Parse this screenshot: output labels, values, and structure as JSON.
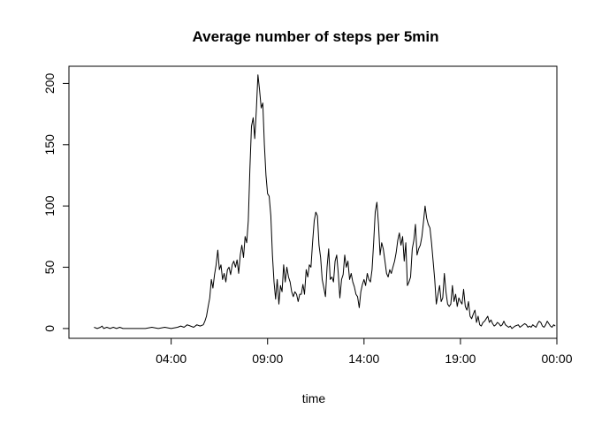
{
  "chart_data": {
    "type": "line",
    "title": "Average number of steps per 5min",
    "xlabel": "time",
    "ylabel": "",
    "x_unit": "minutes since 00:00",
    "xlim": [
      -78,
      1440
    ],
    "ylim": [
      -8,
      214
    ],
    "x_ticks": [
      {
        "value": 240,
        "label": "04:00"
      },
      {
        "value": 540,
        "label": "09:00"
      },
      {
        "value": 840,
        "label": "14:00"
      },
      {
        "value": 1140,
        "label": "19:00"
      },
      {
        "value": 1440,
        "label": "00:00"
      }
    ],
    "y_ticks": [
      0,
      50,
      100,
      150,
      200
    ],
    "grid": false,
    "series": [
      {
        "name": "",
        "color": "#000000",
        "points": [
          [
            0,
            1
          ],
          [
            10,
            0
          ],
          [
            20,
            1
          ],
          [
            25,
            2
          ],
          [
            30,
            0
          ],
          [
            40,
            1
          ],
          [
            50,
            0
          ],
          [
            60,
            1
          ],
          [
            70,
            0
          ],
          [
            80,
            1
          ],
          [
            90,
            0
          ],
          [
            100,
            0
          ],
          [
            120,
            0
          ],
          [
            140,
            0
          ],
          [
            160,
            0
          ],
          [
            180,
            1
          ],
          [
            200,
            0
          ],
          [
            220,
            1
          ],
          [
            240,
            0
          ],
          [
            260,
            1
          ],
          [
            270,
            2
          ],
          [
            280,
            1
          ],
          [
            290,
            3
          ],
          [
            300,
            2
          ],
          [
            310,
            1
          ],
          [
            320,
            3
          ],
          [
            330,
            2
          ],
          [
            340,
            3
          ],
          [
            345,
            6
          ],
          [
            350,
            10
          ],
          [
            355,
            18
          ],
          [
            360,
            25
          ],
          [
            365,
            40
          ],
          [
            370,
            33
          ],
          [
            375,
            44
          ],
          [
            380,
            52
          ],
          [
            385,
            64
          ],
          [
            390,
            48
          ],
          [
            395,
            52
          ],
          [
            400,
            40
          ],
          [
            405,
            45
          ],
          [
            410,
            38
          ],
          [
            415,
            48
          ],
          [
            420,
            50
          ],
          [
            425,
            44
          ],
          [
            430,
            52
          ],
          [
            435,
            55
          ],
          [
            440,
            50
          ],
          [
            445,
            56
          ],
          [
            450,
            45
          ],
          [
            455,
            60
          ],
          [
            460,
            68
          ],
          [
            465,
            58
          ],
          [
            470,
            75
          ],
          [
            475,
            70
          ],
          [
            480,
            88
          ],
          [
            485,
            130
          ],
          [
            490,
            165
          ],
          [
            495,
            172
          ],
          [
            500,
            155
          ],
          [
            505,
            178
          ],
          [
            510,
            207
          ],
          [
            515,
            195
          ],
          [
            520,
            180
          ],
          [
            525,
            184
          ],
          [
            530,
            150
          ],
          [
            535,
            125
          ],
          [
            540,
            110
          ],
          [
            545,
            108
          ],
          [
            550,
            92
          ],
          [
            555,
            60
          ],
          [
            560,
            38
          ],
          [
            565,
            24
          ],
          [
            570,
            40
          ],
          [
            575,
            20
          ],
          [
            580,
            35
          ],
          [
            585,
            30
          ],
          [
            590,
            52
          ],
          [
            595,
            38
          ],
          [
            600,
            50
          ],
          [
            605,
            42
          ],
          [
            610,
            38
          ],
          [
            615,
            30
          ],
          [
            620,
            26
          ],
          [
            625,
            30
          ],
          [
            630,
            28
          ],
          [
            635,
            22
          ],
          [
            640,
            28
          ],
          [
            645,
            28
          ],
          [
            650,
            36
          ],
          [
            655,
            28
          ],
          [
            660,
            48
          ],
          [
            665,
            42
          ],
          [
            670,
            52
          ],
          [
            675,
            50
          ],
          [
            680,
            70
          ],
          [
            685,
            88
          ],
          [
            690,
            95
          ],
          [
            695,
            92
          ],
          [
            700,
            68
          ],
          [
            705,
            58
          ],
          [
            710,
            40
          ],
          [
            715,
            33
          ],
          [
            720,
            26
          ],
          [
            725,
            50
          ],
          [
            730,
            65
          ],
          [
            735,
            40
          ],
          [
            740,
            42
          ],
          [
            745,
            38
          ],
          [
            750,
            55
          ],
          [
            755,
            60
          ],
          [
            760,
            45
          ],
          [
            765,
            25
          ],
          [
            770,
            40
          ],
          [
            775,
            44
          ],
          [
            780,
            60
          ],
          [
            785,
            50
          ],
          [
            790,
            55
          ],
          [
            795,
            40
          ],
          [
            800,
            45
          ],
          [
            805,
            38
          ],
          [
            810,
            34
          ],
          [
            815,
            28
          ],
          [
            820,
            26
          ],
          [
            825,
            17
          ],
          [
            830,
            30
          ],
          [
            835,
            36
          ],
          [
            840,
            40
          ],
          [
            845,
            35
          ],
          [
            850,
            45
          ],
          [
            855,
            40
          ],
          [
            860,
            38
          ],
          [
            865,
            48
          ],
          [
            870,
            70
          ],
          [
            875,
            95
          ],
          [
            880,
            103
          ],
          [
            885,
            85
          ],
          [
            890,
            60
          ],
          [
            895,
            70
          ],
          [
            900,
            65
          ],
          [
            905,
            55
          ],
          [
            910,
            45
          ],
          [
            915,
            42
          ],
          [
            920,
            48
          ],
          [
            925,
            45
          ],
          [
            930,
            50
          ],
          [
            935,
            55
          ],
          [
            940,
            62
          ],
          [
            945,
            72
          ],
          [
            950,
            78
          ],
          [
            955,
            68
          ],
          [
            960,
            75
          ],
          [
            965,
            55
          ],
          [
            970,
            70
          ],
          [
            975,
            35
          ],
          [
            980,
            38
          ],
          [
            985,
            42
          ],
          [
            990,
            65
          ],
          [
            995,
            72
          ],
          [
            1000,
            85
          ],
          [
            1005,
            60
          ],
          [
            1010,
            65
          ],
          [
            1015,
            68
          ],
          [
            1020,
            75
          ],
          [
            1025,
            87
          ],
          [
            1030,
            100
          ],
          [
            1035,
            90
          ],
          [
            1040,
            85
          ],
          [
            1045,
            82
          ],
          [
            1050,
            70
          ],
          [
            1055,
            55
          ],
          [
            1060,
            40
          ],
          [
            1065,
            20
          ],
          [
            1070,
            28
          ],
          [
            1075,
            35
          ],
          [
            1080,
            22
          ],
          [
            1085,
            25
          ],
          [
            1090,
            45
          ],
          [
            1095,
            30
          ],
          [
            1100,
            20
          ],
          [
            1105,
            18
          ],
          [
            1110,
            20
          ],
          [
            1115,
            35
          ],
          [
            1120,
            22
          ],
          [
            1125,
            28
          ],
          [
            1130,
            18
          ],
          [
            1135,
            25
          ],
          [
            1140,
            22
          ],
          [
            1145,
            20
          ],
          [
            1150,
            32
          ],
          [
            1155,
            18
          ],
          [
            1160,
            15
          ],
          [
            1165,
            22
          ],
          [
            1170,
            10
          ],
          [
            1175,
            8
          ],
          [
            1180,
            12
          ],
          [
            1185,
            15
          ],
          [
            1190,
            5
          ],
          [
            1195,
            10
          ],
          [
            1200,
            3
          ],
          [
            1205,
            2
          ],
          [
            1210,
            5
          ],
          [
            1215,
            6
          ],
          [
            1220,
            8
          ],
          [
            1225,
            10
          ],
          [
            1230,
            5
          ],
          [
            1235,
            7
          ],
          [
            1240,
            4
          ],
          [
            1245,
            2
          ],
          [
            1250,
            3
          ],
          [
            1255,
            5
          ],
          [
            1260,
            4
          ],
          [
            1265,
            2
          ],
          [
            1270,
            3
          ],
          [
            1275,
            6
          ],
          [
            1280,
            3
          ],
          [
            1285,
            2
          ],
          [
            1290,
            1
          ],
          [
            1295,
            2
          ],
          [
            1300,
            0
          ],
          [
            1310,
            2
          ],
          [
            1320,
            3
          ],
          [
            1325,
            1
          ],
          [
            1330,
            2
          ],
          [
            1340,
            4
          ],
          [
            1345,
            3
          ],
          [
            1350,
            1
          ],
          [
            1355,
            2
          ],
          [
            1360,
            1
          ],
          [
            1365,
            3
          ],
          [
            1370,
            2
          ],
          [
            1375,
            1
          ],
          [
            1380,
            4
          ],
          [
            1385,
            6
          ],
          [
            1390,
            5
          ],
          [
            1395,
            2
          ],
          [
            1400,
            1
          ],
          [
            1405,
            3
          ],
          [
            1410,
            6
          ],
          [
            1415,
            4
          ],
          [
            1420,
            2
          ],
          [
            1425,
            1
          ],
          [
            1430,
            3
          ],
          [
            1435,
            2
          ]
        ]
      }
    ]
  }
}
